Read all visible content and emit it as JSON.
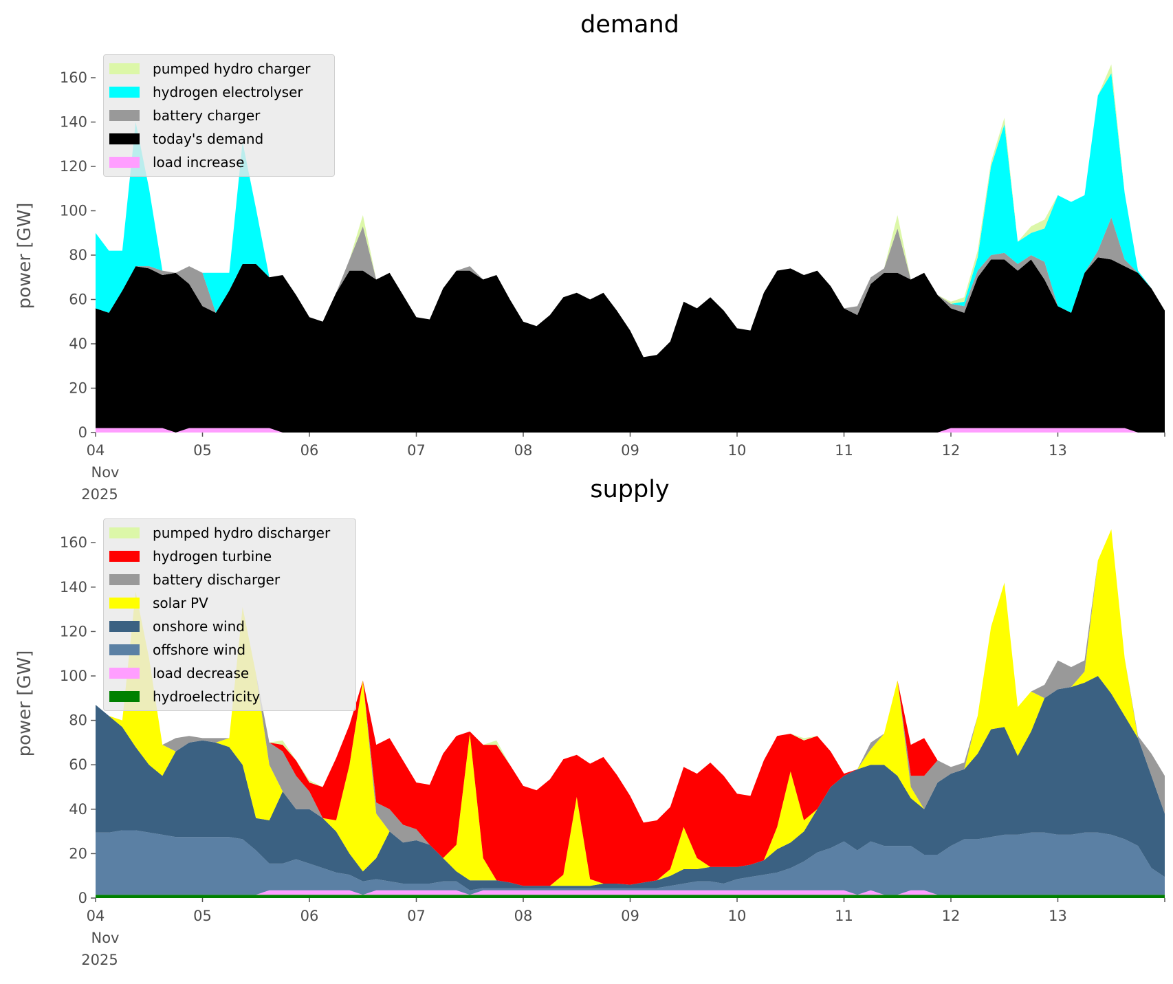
{
  "chart_data": [
    {
      "type": "area",
      "stacked": true,
      "title": "demand",
      "ylabel": "power [GW]",
      "xlabel": "",
      "x_start": "2025-11-04 00:00",
      "step_hours": 3,
      "xticks": [
        {
          "label": "04\nNov\n2025"
        },
        {
          "label": "05"
        },
        {
          "label": "06"
        },
        {
          "label": "07"
        },
        {
          "label": "08"
        },
        {
          "label": "09"
        },
        {
          "label": "10"
        },
        {
          "label": "11"
        },
        {
          "label": "12"
        },
        {
          "label": "13"
        },
        {
          "label": ""
        }
      ],
      "yticks": [
        "0",
        "20",
        "40",
        "60",
        "80",
        "100",
        "120",
        "140",
        "160"
      ],
      "ylim": [
        0,
        170
      ],
      "legend_position": "top-left",
      "series": [
        {
          "name": "load increase",
          "color": "#ff9eff",
          "values": [
            2,
            2,
            2,
            2,
            2,
            2,
            0,
            2,
            2,
            2,
            2,
            2,
            2,
            2,
            0,
            0,
            0,
            0,
            0,
            0,
            0,
            0,
            0,
            0,
            0,
            0,
            0,
            0,
            0,
            0,
            0,
            0,
            0,
            0,
            0,
            0,
            0,
            0,
            0,
            0,
            0,
            0,
            0,
            0,
            0,
            0,
            0,
            0,
            0,
            0,
            0,
            0,
            0,
            0,
            0,
            0,
            0,
            0,
            0,
            0,
            0,
            0,
            0,
            0,
            2,
            2,
            2,
            2,
            2,
            2,
            2,
            2,
            2,
            2,
            2,
            2,
            2,
            2,
            0,
            0,
            0
          ]
        },
        {
          "name": "today's demand",
          "color": "#000000",
          "values": [
            54,
            52,
            62,
            73,
            72,
            69,
            72,
            65,
            55,
            52,
            62,
            74,
            74,
            68,
            71,
            62,
            52,
            50,
            63,
            73,
            73,
            69,
            72,
            62,
            52,
            51,
            65,
            73,
            73,
            69,
            71,
            60,
            50,
            48,
            53,
            61,
            63,
            60,
            63,
            55,
            46,
            34,
            35,
            41,
            59,
            56,
            61,
            55,
            47,
            46,
            63,
            73,
            74,
            71,
            73,
            66,
            56,
            53,
            67,
            72,
            72,
            69,
            72,
            62,
            54,
            52,
            68,
            76,
            76,
            71,
            76,
            67,
            55,
            52,
            70,
            77,
            76,
            73,
            72,
            65,
            55
          ]
        },
        {
          "name": "battery charger",
          "color": "#999999",
          "values": [
            0,
            0,
            0,
            0,
            1,
            2,
            0,
            8,
            15,
            0,
            0,
            0,
            0,
            0,
            0,
            0,
            0,
            0,
            0,
            5,
            20,
            0,
            0,
            0,
            0,
            0,
            0,
            0,
            2,
            0,
            0,
            0,
            0,
            0,
            0,
            0,
            0,
            0,
            0,
            0,
            0,
            0,
            0,
            0,
            0,
            0,
            0,
            0,
            0,
            0,
            0,
            0,
            0,
            0,
            0,
            0,
            0,
            4,
            3,
            2,
            20,
            0,
            0,
            0,
            2,
            3,
            3,
            2,
            3,
            3,
            2,
            8,
            0,
            0,
            0,
            3,
            19,
            3,
            0,
            0,
            0
          ]
        },
        {
          "name": "hydrogen electrolyser",
          "color": "#00ffff",
          "values": [
            34,
            28,
            18,
            65,
            35,
            0,
            0,
            0,
            0,
            18,
            8,
            55,
            25,
            0,
            0,
            0,
            0,
            0,
            0,
            0,
            0,
            0,
            0,
            0,
            0,
            0,
            0,
            0,
            0,
            0,
            0,
            0,
            0,
            0,
            0,
            0,
            0,
            0,
            0,
            0,
            0,
            0,
            0,
            0,
            0,
            0,
            0,
            0,
            0,
            0,
            0,
            0,
            0,
            0,
            0,
            0,
            0,
            0,
            0,
            0,
            0,
            0,
            0,
            0,
            0,
            2,
            6,
            40,
            58,
            10,
            10,
            15,
            50,
            50,
            35,
            70,
            65,
            30,
            1,
            0,
            0
          ]
        },
        {
          "name": "pumped hydro charger",
          "color": "#dcf7a8",
          "values": [
            0,
            0,
            0,
            0,
            0,
            0,
            0,
            0,
            0,
            0,
            0,
            0,
            0,
            0,
            0,
            0,
            0,
            0,
            0,
            0,
            5,
            0,
            0,
            0,
            0,
            0,
            0,
            0,
            0,
            0,
            0,
            0,
            0,
            0,
            0,
            0,
            0,
            0,
            0,
            0,
            0,
            0,
            0,
            0,
            0,
            0,
            0,
            0,
            0,
            0,
            0,
            0,
            0,
            0,
            0,
            0,
            0,
            0,
            0,
            0,
            6,
            0,
            0,
            0,
            1,
            2,
            3,
            2,
            3,
            0,
            3,
            4,
            0,
            0,
            0,
            0,
            4,
            0,
            0,
            0,
            0
          ]
        }
      ]
    },
    {
      "type": "area",
      "stacked": true,
      "title": "supply",
      "ylabel": "power [GW]",
      "xlabel": "",
      "x_start": "2025-11-04 00:00",
      "step_hours": 3,
      "xticks": [
        {
          "label": "04\nNov\n2025"
        },
        {
          "label": "05"
        },
        {
          "label": "06"
        },
        {
          "label": "07"
        },
        {
          "label": "08"
        },
        {
          "label": "09"
        },
        {
          "label": "10"
        },
        {
          "label": "11"
        },
        {
          "label": "12"
        },
        {
          "label": "13"
        },
        {
          "label": ""
        }
      ],
      "yticks": [
        "0",
        "20",
        "40",
        "60",
        "80",
        "100",
        "120",
        "140",
        "160"
      ],
      "ylim": [
        0,
        170
      ],
      "legend_position": "top-left",
      "series": [
        {
          "name": "hydroelectricity",
          "color": "#008000",
          "values": [
            1.5,
            1.5,
            1.5,
            1.5,
            1.5,
            1.5,
            1.5,
            1.5,
            1.5,
            1.5,
            1.5,
            1.5,
            1.5,
            1.5,
            1.5,
            1.5,
            1.5,
            1.5,
            1.5,
            1.5,
            1.5,
            1.5,
            1.5,
            1.5,
            1.5,
            1.5,
            1.5,
            1.5,
            1.5,
            1.5,
            1.5,
            1.5,
            1.5,
            1.5,
            1.5,
            1.5,
            1.5,
            1.5,
            1.5,
            1.5,
            1.5,
            1.5,
            1.5,
            1.5,
            1.5,
            1.5,
            1.5,
            1.5,
            1.5,
            1.5,
            1.5,
            1.5,
            1.5,
            1.5,
            1.5,
            1.5,
            1.5,
            1.5,
            1.5,
            1.5,
            1.5,
            1.5,
            1.5,
            1.5,
            1.5,
            1.5,
            1.5,
            1.5,
            1.5,
            1.5,
            1.5,
            1.5,
            1.5,
            1.5,
            1.5,
            1.5,
            1.5,
            1.5,
            1.5,
            1.5,
            1.5
          ]
        },
        {
          "name": "load decrease",
          "color": "#ff9eff",
          "values": [
            0,
            0,
            0,
            0,
            0,
            0,
            0,
            0,
            0,
            0,
            0,
            0,
            0,
            2,
            2,
            2,
            2,
            2,
            2,
            2,
            0,
            2,
            2,
            2,
            2,
            2,
            2,
            2,
            0,
            2,
            2,
            2,
            2,
            2,
            2,
            2,
            2,
            2,
            2,
            2,
            2,
            2,
            2,
            2,
            2,
            2,
            2,
            2,
            2,
            2,
            2,
            2,
            2,
            2,
            2,
            2,
            2,
            0,
            2,
            0,
            0,
            2,
            2,
            0,
            0,
            0,
            0,
            0,
            0,
            0,
            0,
            0,
            0,
            0,
            0,
            0,
            0,
            0,
            0,
            0,
            0
          ]
        },
        {
          "name": "offshore wind",
          "color": "#5b80a4",
          "values": [
            28,
            28,
            29,
            29,
            28,
            27,
            26,
            26,
            26,
            26,
            26,
            25,
            20,
            12,
            12,
            14,
            12,
            10,
            8,
            7,
            6,
            5,
            4,
            3,
            3,
            3,
            4,
            4,
            2,
            1,
            1,
            1,
            1,
            1,
            1,
            1,
            1,
            1,
            1,
            1,
            1,
            1,
            1,
            2,
            3,
            4,
            4,
            3,
            5,
            6,
            7,
            8,
            10,
            13,
            17,
            19,
            22,
            20,
            22,
            22,
            22,
            20,
            16,
            18,
            22,
            25,
            25,
            26,
            27,
            27,
            28,
            28,
            27,
            27,
            28,
            28,
            27,
            25,
            22,
            12,
            8
          ]
        },
        {
          "name": "onshore wind",
          "color": "#3b6182",
          "values": [
            57.5,
            52.5,
            46.5,
            37.5,
            30.5,
            26.5,
            38.5,
            42.5,
            43.5,
            42.5,
            40.5,
            33.5,
            14.5,
            19.5,
            32.5,
            22.5,
            24.5,
            22.5,
            18.5,
            9.5,
            4.5,
            9.5,
            22.5,
            18.5,
            19.5,
            17.5,
            10.5,
            4.5,
            4.5,
            3.5,
            3.5,
            2.5,
            1,
            1,
            1,
            1,
            1,
            1,
            2,
            2,
            1.5,
            2.5,
            3.5,
            4.5,
            6.5,
            5.5,
            6.5,
            7.5,
            5.5,
            5.5,
            6.5,
            10.5,
            11.5,
            13.5,
            19.5,
            27.5,
            29.5,
            36.5,
            34.5,
            36.5,
            31.5,
            21.5,
            20.5,
            32.5,
            32.5,
            31.5,
            38.5,
            48.5,
            48.5,
            35.5,
            45.5,
            60.5,
            65.5,
            66.5,
            67.5,
            70.5,
            63.5,
            55.5,
            48.5,
            41.5,
            28.5
          ]
        },
        {
          "name": "solar PV",
          "color": "#ffff00",
          "values": [
            0,
            0,
            3,
            70,
            48,
            14,
            0,
            0,
            0,
            0,
            4,
            71,
            65,
            25,
            0,
            0,
            0,
            0,
            5,
            40,
            86,
            20,
            0,
            0,
            0,
            0,
            0,
            12,
            66,
            10,
            0,
            0,
            0,
            0,
            0,
            5,
            40,
            3,
            0,
            0,
            0,
            0,
            0,
            3,
            19,
            5,
            0,
            0,
            0,
            0,
            0,
            10,
            32,
            5,
            0,
            0,
            0,
            0,
            7,
            14,
            43,
            5,
            0,
            0,
            0,
            0,
            17,
            46,
            65,
            22,
            18,
            0,
            0,
            0,
            5,
            52,
            74,
            26,
            0,
            0,
            0
          ]
        },
        {
          "name": "battery discharger",
          "color": "#999999",
          "values": [
            0,
            0,
            0,
            0,
            0,
            0,
            6,
            3,
            1,
            2,
            0,
            0,
            0,
            10,
            18,
            15,
            8,
            0,
            0,
            0,
            0,
            5,
            10,
            8,
            5,
            0,
            0,
            0,
            0,
            0,
            0,
            0,
            0,
            0,
            0,
            0,
            0,
            0,
            0,
            0,
            0,
            0,
            0,
            0,
            0,
            0,
            0,
            0,
            0,
            0,
            0,
            0,
            0,
            0,
            0,
            0,
            0,
            0,
            3,
            0,
            0,
            5,
            15,
            10,
            3,
            3,
            0,
            0,
            0,
            0,
            0,
            6,
            13,
            9,
            5,
            0,
            0,
            0,
            1,
            10,
            17
          ]
        },
        {
          "name": "hydrogen turbine",
          "color": "#ff0000",
          "values": [
            0,
            0,
            0,
            0,
            0,
            0,
            0,
            0,
            0,
            0,
            0,
            0,
            0,
            0,
            3,
            7,
            4,
            14,
            28,
            18,
            0,
            26,
            32,
            29,
            21,
            27,
            47,
            49,
            1,
            51,
            61,
            53,
            45,
            43,
            48,
            52,
            19,
            52,
            57,
            49,
            40,
            27,
            27,
            28,
            27,
            38,
            47,
            41,
            33,
            31,
            45,
            41,
            17,
            36,
            33,
            16,
            1,
            0,
            0,
            0,
            0,
            14,
            17,
            0,
            0,
            0,
            0,
            0,
            0,
            0,
            0,
            0,
            0,
            0,
            0,
            0,
            0,
            0,
            0,
            0,
            0
          ]
        },
        {
          "name": "pumped hydro discharger",
          "color": "#dcf7a8",
          "values": [
            0,
            0,
            0,
            0,
            0,
            0,
            0,
            0,
            0,
            0,
            0,
            0,
            0,
            0,
            2,
            0,
            1,
            0,
            0,
            0,
            0,
            0,
            0,
            0,
            0,
            0,
            0,
            0,
            0,
            0,
            2,
            0,
            0,
            0,
            0,
            0,
            0,
            0,
            0,
            0,
            0,
            0,
            0,
            0,
            0,
            0,
            0,
            0,
            0,
            0,
            0,
            0,
            0,
            1,
            0,
            0,
            0,
            0,
            0,
            0,
            0,
            0,
            0,
            0,
            0,
            0,
            0,
            0,
            0,
            0,
            0,
            0,
            0,
            0,
            0,
            0,
            0,
            0,
            0,
            0,
            0
          ]
        }
      ]
    }
  ]
}
